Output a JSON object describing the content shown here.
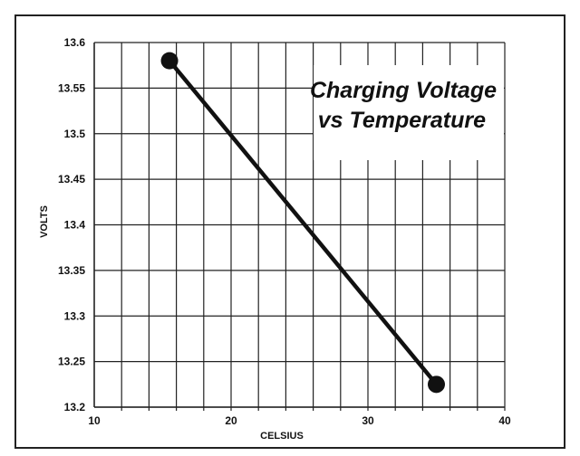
{
  "chart_data": {
    "type": "line",
    "title": [
      "Charging Voltage",
      "vs Temperature"
    ],
    "xlabel": "CELSIUS",
    "ylabel": "VOLTS",
    "xlim": [
      10,
      40
    ],
    "ylim": [
      13.2,
      13.6
    ],
    "xticks": [
      10,
      20,
      30,
      40
    ],
    "xtick_labels": [
      "10",
      "20",
      "30",
      "40"
    ],
    "yticks": [
      13.2,
      13.25,
      13.3,
      13.35,
      13.4,
      13.45,
      13.5,
      13.55,
      13.6
    ],
    "ytick_labels": [
      "13.2",
      "13.25",
      "13.3",
      "13.35",
      "13.4",
      "13.45",
      "13.5",
      "13.55",
      "13.6"
    ],
    "x_gridlines": [
      12,
      14,
      16,
      18,
      20,
      22,
      24,
      26,
      28,
      30,
      32,
      34,
      36,
      38,
      40
    ],
    "grid": true,
    "series": [
      {
        "x": [
          15.5,
          35
        ],
        "y": [
          13.58,
          13.225
        ],
        "color": "#111111"
      }
    ]
  }
}
